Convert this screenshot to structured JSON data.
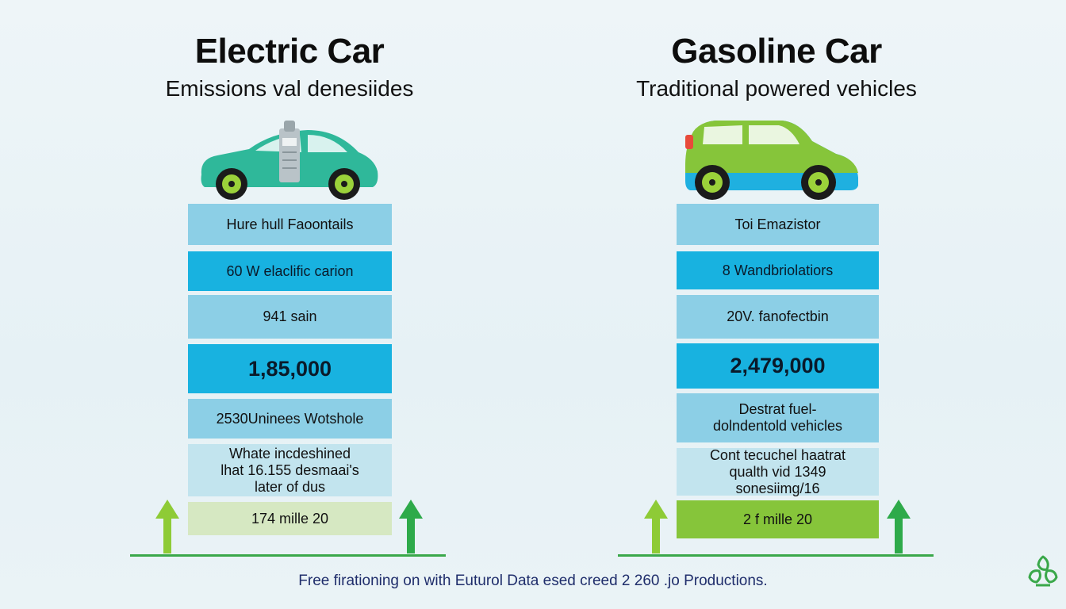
{
  "left": {
    "title": "Electric Car",
    "subtitle": "Emissions val denesiides",
    "boxes": [
      "Hure hull Faoontails",
      "60 W elaclific carion",
      "941 sain",
      "1,85,000",
      "2530Uninees Wotshole",
      "Whate incdeshined lhat 16.155 desmaai's later of dus",
      "174 mille 20"
    ]
  },
  "right": {
    "title": "Gasoline Car",
    "subtitle": "Traditional powered vehicles",
    "boxes": [
      "Toi Emazistor",
      "8 Wandbriolatiors",
      "20V. fanofectbin",
      "2,479,000",
      "Destrat fuel-dolndentold vehicles",
      "Cont tecuchel haatrat qualth vid 1349 sonesiimg/16",
      "2 f mille 20"
    ]
  },
  "footer": "Free firationing on with Euturol Data esed creed 2 260 .jo Productions.",
  "icons": {
    "electric_car": "electric-car-icon",
    "gasoline_car": "gasoline-car-icon",
    "arrow": "up-arrow-icon",
    "logo": "recycle-leaf-logo-icon"
  },
  "colors": {
    "electric_car_body": "#2fb89a",
    "gasoline_car_top": "#86c53a",
    "gasoline_car_bottom": "#1fb0e0",
    "box_light": "#8ccfe6",
    "box_bright": "#18b2e0",
    "box_pale": "#c2e4ee",
    "ground_line": "#3aa84a"
  }
}
